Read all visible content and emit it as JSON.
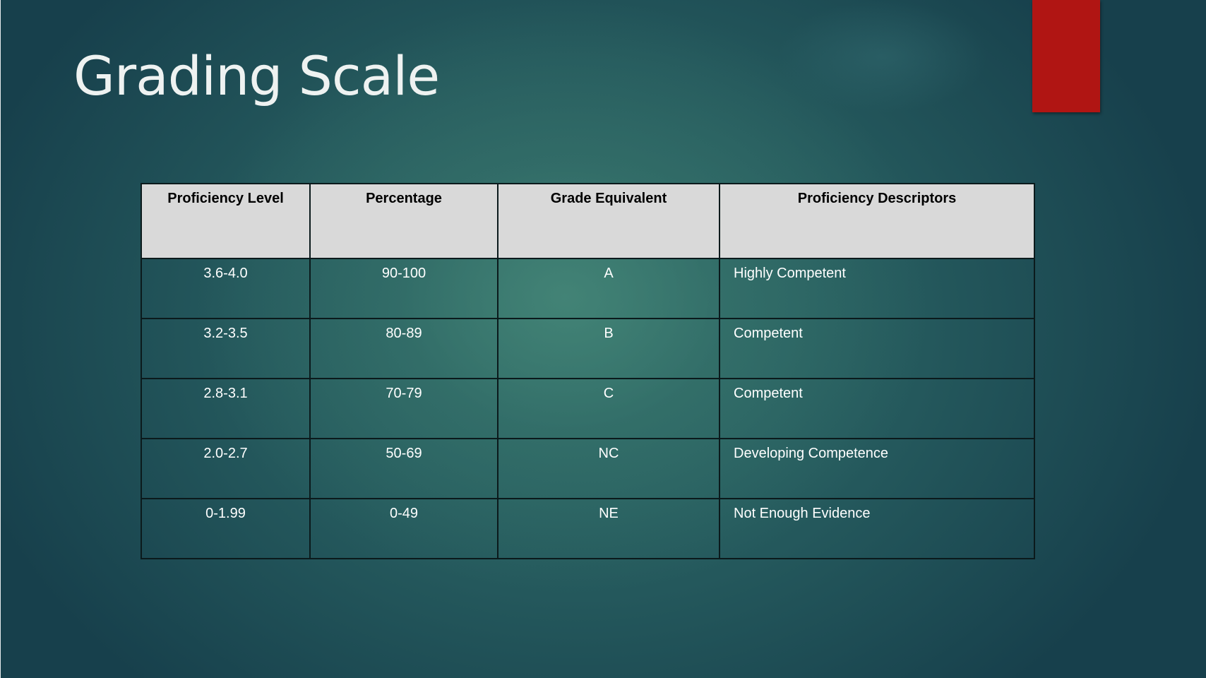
{
  "slide": {
    "title": "Grading Scale",
    "accent_color": "#b01513",
    "header_background": "#d9d9d9"
  },
  "table": {
    "headers": [
      "Proficiency Level",
      "Percentage",
      "Grade Equivalent",
      "Proficiency Descriptors"
    ],
    "rows": [
      [
        "3.6-4.0",
        "90-100",
        "A",
        "Highly Competent"
      ],
      [
        "3.2-3.5",
        "80-89",
        "B",
        "Competent"
      ],
      [
        "2.8-3.1",
        "70-79",
        "C",
        "Competent"
      ],
      [
        "2.0-2.7",
        "50-69",
        "NC",
        "Developing Competence"
      ],
      [
        "0-1.99",
        "0-49",
        "NE",
        "Not Enough Evidence"
      ]
    ]
  }
}
